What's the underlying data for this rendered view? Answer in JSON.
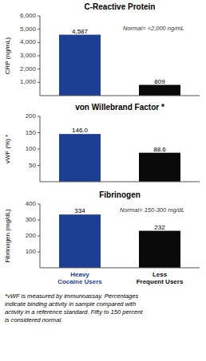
{
  "chart_data": [
    {
      "type": "bar",
      "title": "C-Reactive Protein",
      "ylabel": "CRP (ng/mL)",
      "values": [
        4587,
        809
      ],
      "value_labels": [
        "4,587",
        "809"
      ],
      "data_labels": true,
      "colors": [
        "#1c3f94",
        "#0a0a0a"
      ],
      "ylim": [
        0,
        6000
      ],
      "yticks": [
        {
          "value": 1000,
          "label": "1,000"
        },
        {
          "value": 2000,
          "label": "2,000"
        },
        {
          "value": 3000,
          "label": "3,000"
        },
        {
          "value": 4000,
          "label": "4,000"
        },
        {
          "value": 5000,
          "label": "5,000"
        },
        {
          "value": 6000,
          "label": "6,000"
        }
      ],
      "annotation": "Normal= <2,000 ng/mL",
      "grid": false,
      "tick_labels": "y"
    },
    {
      "type": "bar",
      "title": "von Willebrand Factor *",
      "ylabel": "vWF (%) *",
      "values": [
        146.0,
        88.6
      ],
      "value_labels": [
        "146.0",
        "88.6"
      ],
      "data_labels": true,
      "colors": [
        "#1c3f94",
        "#0a0a0a"
      ],
      "ylim": [
        0,
        200
      ],
      "yticks": [
        50,
        100,
        150,
        200
      ],
      "grid": false,
      "tick_labels": "y"
    },
    {
      "type": "bar",
      "title": "Fibrinogen",
      "ylabel": "Fibrinogen (mg/dL)",
      "categories": [
        "Heavy\nCocaine Users",
        "Less\nFrequent Users"
      ],
      "values": [
        334,
        232
      ],
      "value_labels": [
        "334",
        "232"
      ],
      "data_labels": true,
      "colors": [
        "#1c3f94",
        "#0a0a0a"
      ],
      "ylim": [
        0,
        400
      ],
      "yticks": [
        100,
        200,
        300,
        400
      ],
      "annotation": "Normal= 150-300 mg/dL",
      "grid": false,
      "footnote": "*vWF is measured by immunoassay. Percentages\nindicate binding activity in sample compared with\nactivity in a reference standard. Fifty to 150 percent\nis considered normal."
    }
  ]
}
